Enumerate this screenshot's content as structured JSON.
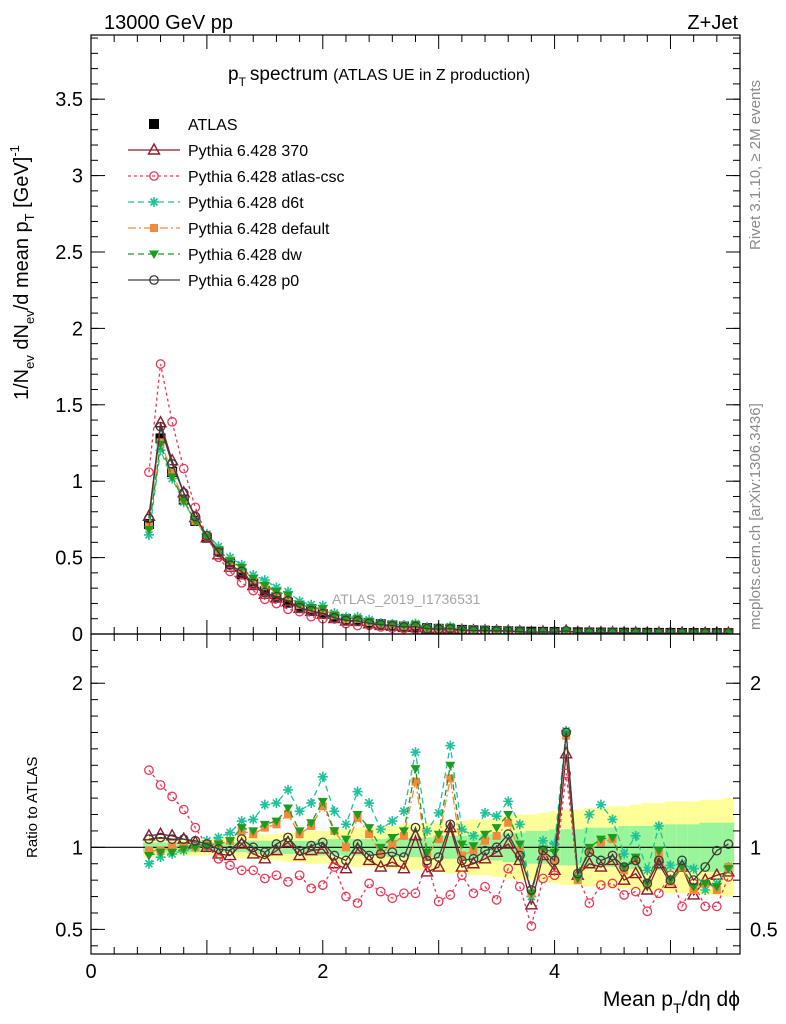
{
  "header": {
    "left": "13000 GeV pp",
    "right": "Z+Jet"
  },
  "side_labels": {
    "rivet": "Rivet 3.1.10, ≥ 2M events",
    "mcplots": "mcplots.cern.ch [arXiv:1306.3436]"
  },
  "colors": {
    "atlas": "#000000",
    "p370": "#8b1a2b",
    "atlascsc": "#e8395a",
    "d6t": "#1fc29a",
    "default": "#f5883b",
    "dw": "#1f9c1f",
    "p0": "#3d3d3d",
    "band_outer": "#ffff99",
    "band_inner": "#99f599"
  },
  "chart_data": {
    "type": "line",
    "title": {
      "main": "p",
      "sub": "T",
      "rest": "spectrum",
      "extra": "(ATLAS UE in Z production)"
    },
    "watermark": "ATLAS_2019_I1736531",
    "top_panel": {
      "ylabel": {
        "a": "1/N",
        "b": "ev",
        "c": " dN",
        "d": "ev",
        "e": "/d mean p",
        "f": "T",
        "g": " [GeV]",
        "h": "-1"
      },
      "ylim": [
        0,
        3.92
      ],
      "yticks": [
        "0",
        "0.5",
        "1",
        "1.5",
        "2",
        "2.5",
        "3",
        "3.5"
      ]
    },
    "bottom_panel": {
      "ylabel": "Ratio to ATLAS",
      "ylim": [
        0.35,
        2.3
      ],
      "yticks": [
        "0.5",
        "1",
        "2"
      ]
    },
    "xaxis": {
      "label": {
        "a": "Mean p",
        "b": "T",
        "c": "/dη dϕ"
      },
      "xlim": [
        0,
        5.6
      ],
      "xticks": [
        "0",
        "2",
        "4"
      ]
    },
    "x": [
      0.5,
      0.6,
      0.7,
      0.8,
      0.9,
      1.0,
      1.1,
      1.2,
      1.3,
      1.4,
      1.5,
      1.6,
      1.7,
      1.8,
      1.9,
      2.0,
      2.1,
      2.2,
      2.3,
      2.4,
      2.5,
      2.6,
      2.7,
      2.8,
      2.9,
      3.0,
      3.1,
      3.2,
      3.3,
      3.4,
      3.5,
      3.6,
      3.7,
      3.8,
      3.9,
      4.0,
      4.1,
      4.2,
      4.3,
      4.4,
      4.5,
      4.6,
      4.7,
      4.8,
      4.9,
      5.0,
      5.1,
      5.2,
      5.3,
      5.4,
      5.5
    ],
    "atlas_values": [
      0.72,
      1.28,
      1.06,
      0.88,
      0.74,
      0.63,
      0.54,
      0.46,
      0.39,
      0.33,
      0.28,
      0.24,
      0.205,
      0.176,
      0.151,
      0.13,
      0.112,
      0.097,
      0.084,
      0.073,
      0.064,
      0.056,
      0.049,
      0.043,
      0.038,
      0.034,
      0.03,
      0.027,
      0.024,
      0.022,
      0.02,
      0.018,
      0.016,
      0.015,
      0.014,
      0.013,
      0.012,
      0.011,
      0.01,
      0.0095,
      0.009,
      0.0085,
      0.008,
      0.0075,
      0.007,
      0.0068,
      0.0065,
      0.0062,
      0.006,
      0.0058,
      0.0055
    ],
    "band_outer": [
      0.06,
      0.05,
      0.05,
      0.05,
      0.05,
      0.05,
      0.06,
      0.06,
      0.07,
      0.07,
      0.08,
      0.08,
      0.09,
      0.09,
      0.1,
      0.1,
      0.11,
      0.11,
      0.12,
      0.12,
      0.13,
      0.13,
      0.14,
      0.14,
      0.15,
      0.15,
      0.16,
      0.16,
      0.17,
      0.17,
      0.18,
      0.19,
      0.2,
      0.2,
      0.21,
      0.22,
      0.23,
      0.23,
      0.24,
      0.24,
      0.25,
      0.25,
      0.26,
      0.27,
      0.27,
      0.28,
      0.28,
      0.28,
      0.29,
      0.29,
      0.3
    ],
    "band_inner": [
      0.03,
      0.03,
      0.03,
      0.03,
      0.03,
      0.03,
      0.03,
      0.03,
      0.03,
      0.04,
      0.04,
      0.04,
      0.04,
      0.04,
      0.04,
      0.05,
      0.05,
      0.05,
      0.05,
      0.05,
      0.05,
      0.06,
      0.06,
      0.06,
      0.06,
      0.07,
      0.07,
      0.07,
      0.08,
      0.08,
      0.08,
      0.09,
      0.09,
      0.1,
      0.1,
      0.11,
      0.11,
      0.11,
      0.12,
      0.12,
      0.12,
      0.13,
      0.13,
      0.13,
      0.14,
      0.14,
      0.14,
      0.14,
      0.15,
      0.15,
      0.15
    ],
    "series": [
      {
        "name": "ATLAS",
        "key": "atlas",
        "marker": "square",
        "line": "none",
        "ratio": [
          1,
          1,
          1,
          1,
          1,
          1,
          1,
          1,
          1,
          1,
          1,
          1,
          1,
          1,
          1,
          1,
          1,
          1,
          1,
          1,
          1,
          1,
          1,
          1,
          1,
          1,
          1,
          1,
          1,
          1,
          1,
          1,
          1,
          1,
          1,
          1,
          1,
          1,
          1,
          1,
          1,
          1,
          1,
          1,
          1,
          1,
          1,
          1,
          1,
          1,
          1
        ]
      },
      {
        "name": "Pythia 6.428 370",
        "key": "p370",
        "marker": "triangle-open",
        "line": "solid",
        "ratio": [
          1.07,
          1.08,
          1.07,
          1.05,
          1.03,
          1.0,
          0.96,
          0.95,
          1.02,
          0.96,
          0.93,
          0.98,
          1.03,
          0.95,
          0.98,
          0.99,
          0.9,
          0.87,
          0.99,
          0.92,
          0.88,
          0.91,
          0.87,
          1.07,
          0.85,
          0.88,
          1.12,
          0.88,
          0.9,
          0.93,
          0.97,
          1.02,
          0.92,
          0.65,
          0.95,
          0.86,
          1.57,
          0.83,
          0.9,
          0.88,
          0.92,
          0.8,
          0.84,
          0.74,
          0.9,
          0.78,
          0.88,
          0.71,
          0.8,
          0.83,
          0.85
        ]
      },
      {
        "name": "Pythia 6.428 atlas-csc",
        "key": "atlascsc",
        "marker": "circle-open",
        "line": "dotted",
        "ratio": [
          1.47,
          1.38,
          1.31,
          1.23,
          1.12,
          1.01,
          0.93,
          0.89,
          0.86,
          0.86,
          0.81,
          0.83,
          0.79,
          0.83,
          0.75,
          0.77,
          0.88,
          0.7,
          0.66,
          0.78,
          0.73,
          0.69,
          0.72,
          0.72,
          0.9,
          0.67,
          0.71,
          0.83,
          0.72,
          0.76,
          0.68,
          0.87,
          0.76,
          0.52,
          0.81,
          0.83,
          1.45,
          0.82,
          0.66,
          0.77,
          0.78,
          0.71,
          0.73,
          0.61,
          0.72,
          0.83,
          0.64,
          0.78,
          0.64,
          0.64,
          0.82
        ]
      },
      {
        "name": "Pythia 6.428 d6t",
        "key": "d6t",
        "marker": "star",
        "line": "dashed",
        "ratio": [
          0.9,
          0.94,
          0.96,
          0.98,
          1.0,
          1.04,
          1.06,
          1.09,
          1.16,
          1.17,
          1.26,
          1.27,
          1.35,
          1.22,
          1.27,
          1.43,
          1.22,
          1.14,
          1.34,
          1.27,
          1.11,
          1.16,
          1.22,
          1.58,
          1.1,
          1.21,
          1.62,
          1.11,
          1.07,
          1.21,
          1.19,
          1.28,
          1.14,
          0.7,
          1.04,
          1.02,
          1.71,
          0.82,
          1.2,
          1.26,
          1.17,
          0.96,
          1.07,
          0.86,
          1.13,
          0.89,
          0.9,
          0.87,
          0.74,
          0.78,
          0.88
        ]
      },
      {
        "name": "Pythia 6.428 default",
        "key": "default",
        "marker": "square-small",
        "line": "dashdot",
        "ratio": [
          0.98,
          0.98,
          1.0,
          1.0,
          1.0,
          1.02,
          1.02,
          1.04,
          1.1,
          1.08,
          1.12,
          1.14,
          1.2,
          1.08,
          1.13,
          1.25,
          1.1,
          1.0,
          1.18,
          1.08,
          0.96,
          1.02,
          1.07,
          1.4,
          0.95,
          1.05,
          1.42,
          0.95,
          0.98,
          1.04,
          1.07,
          1.15,
          0.98,
          0.72,
          0.97,
          0.92,
          1.68,
          0.8,
          0.98,
          1.03,
          1.05,
          0.86,
          0.92,
          0.78,
          0.96,
          0.79,
          0.88,
          0.74,
          0.78,
          0.74,
          0.88
        ]
      },
      {
        "name": "Pythia 6.428 dw",
        "key": "dw",
        "marker": "triangle-down",
        "line": "dashed",
        "ratio": [
          0.95,
          0.97,
          0.97,
          0.99,
          1.0,
          1.01,
          1.02,
          1.04,
          1.12,
          1.1,
          1.14,
          1.16,
          1.24,
          1.1,
          1.15,
          1.28,
          1.1,
          1.05,
          1.2,
          1.12,
          1.0,
          1.06,
          1.1,
          1.48,
          0.97,
          1.08,
          1.5,
          1.02,
          1.01,
          1.08,
          1.12,
          1.2,
          1.02,
          0.72,
          0.99,
          0.97,
          1.69,
          0.81,
          1.0,
          1.05,
          1.06,
          0.88,
          0.94,
          0.78,
          0.98,
          0.8,
          0.88,
          0.76,
          0.78,
          0.76,
          0.87
        ]
      },
      {
        "name": "Pythia 6.428 p0",
        "key": "p0",
        "marker": "circle-open",
        "line": "solid",
        "ratio": [
          1.05,
          1.06,
          1.05,
          1.05,
          1.04,
          1.02,
          0.99,
          0.98,
          1.05,
          1.0,
          0.97,
          1.02,
          1.06,
          0.98,
          1.01,
          1.03,
          0.95,
          0.92,
          1.02,
          0.95,
          0.96,
          0.97,
          0.94,
          1.12,
          0.92,
          0.94,
          1.14,
          0.92,
          0.93,
          0.98,
          1.0,
          1.08,
          0.95,
          0.74,
          0.98,
          0.92,
          1.7,
          0.84,
          0.97,
          0.92,
          0.95,
          0.88,
          0.92,
          0.78,
          0.92,
          0.8,
          0.92,
          0.8,
          0.88,
          0.98,
          1.02
        ]
      }
    ]
  }
}
